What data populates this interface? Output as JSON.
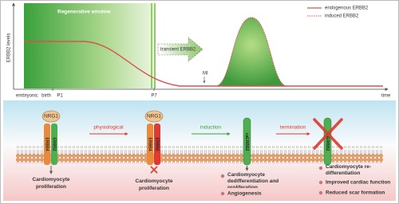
{
  "axis": {
    "y_label": "ERBB2 levels",
    "x_label": "time",
    "timeline": [
      "embryonic",
      "birth",
      "P1",
      "P7"
    ]
  },
  "annotations": {
    "regenerative_window": "Regenerative window",
    "transient": "transient ERBB2",
    "mi": "MI"
  },
  "legend": [
    "endogenous ERBB2",
    "induced ERBB2"
  ],
  "arrows": [
    "physiological",
    "induction",
    "termination"
  ],
  "receptors": {
    "ligand": "NRG1",
    "erbb4": "ERBB4",
    "erbb2": "ERBB2",
    "ca": "caERBB2"
  },
  "outcomes": {
    "step1": "Cardiomyocyte proliferation",
    "step2": "Cardiomyocyte proliferation",
    "step3": [
      "Cardiomyocyte dedifferentiation and proliferation",
      "Angiogenesis"
    ],
    "step4": [
      "Cardiomyocyte re-differentiation",
      "Improved cardiac function",
      "Reduced scar formation"
    ]
  }
}
